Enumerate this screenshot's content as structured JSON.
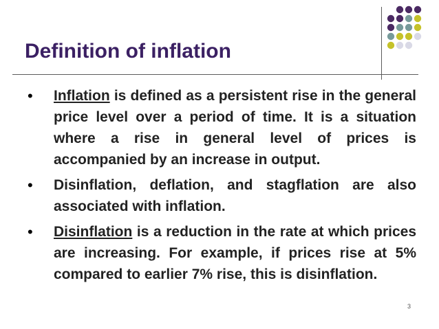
{
  "slide": {
    "title": "Definition of inflation",
    "page_number": "3",
    "colors": {
      "title": "#3b2063",
      "dot_purple": "#4b2a63",
      "dot_teal": "#779a9a",
      "dot_yellow": "#c5c22a",
      "dot_lavender": "#d9d9e6"
    },
    "bullets": [
      {
        "term": "Inflation",
        "text": " is defined as a persistent rise in the general price level over a period of time. It is a situation where a rise in general level of prices is accompanied by an increase in output."
      },
      {
        "term": "",
        "text": "Disinflation, deflation, and stagflation are also associated with inflation."
      },
      {
        "term": "Disinflation",
        "text": " is a reduction in the rate at which prices are increasing. For example, if prices rise at 5% compared to earlier 7% rise, this is disinflation."
      }
    ]
  }
}
